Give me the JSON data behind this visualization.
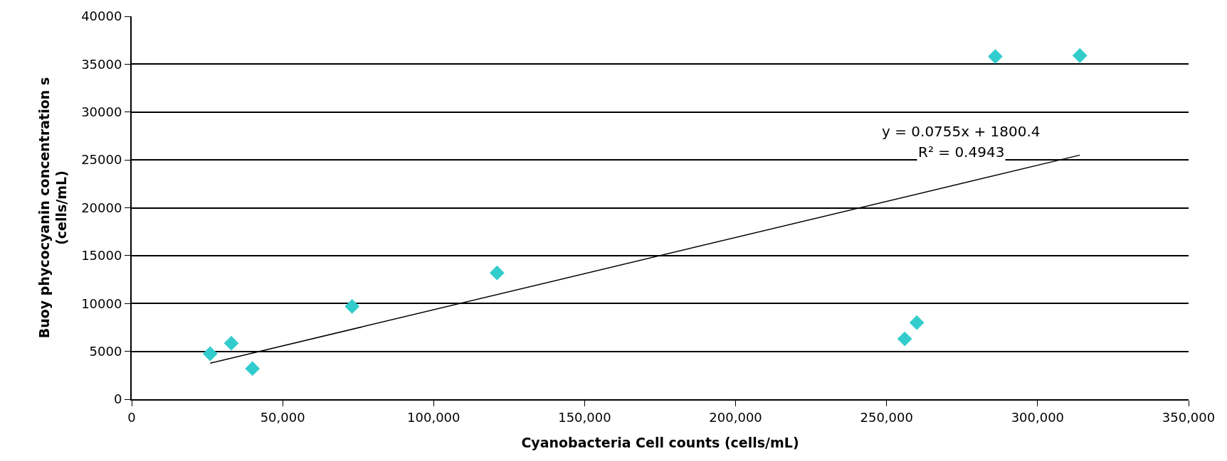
{
  "chart_data": {
    "type": "scatter",
    "xlabel": "Cyanobacteria Cell counts (cells/mL)",
    "ylabel": "Buoy phycocyanin concentration s\n(cells/mL)",
    "x": [
      26000,
      33000,
      40000,
      73000,
      121000,
      256000,
      260000,
      286000,
      314000
    ],
    "series": [
      {
        "color": "#33cccc",
        "marker": "diamond",
        "values": [
          4750,
          5850,
          3200,
          9700,
          13200,
          6300,
          8000,
          35800,
          35900
        ]
      },
      {
        "type": "line",
        "color": "#000000",
        "marker": "none",
        "x": [
          26000,
          314000
        ],
        "values": [
          3760,
          25500
        ]
      }
    ],
    "annotations": [
      "y = 0.0755x + 1800.4",
      "R² = 0.4943"
    ],
    "xlim": [
      0,
      350000
    ],
    "xticks": [
      0,
      {
        "value": 50000,
        "label": "50,000"
      },
      {
        "value": 100000,
        "label": "100,000"
      },
      {
        "value": 150000,
        "label": "150,000"
      },
      {
        "value": 200000,
        "label": "200,000"
      },
      {
        "value": 250000,
        "label": "250,000"
      },
      {
        "value": 300000,
        "label": "300,000"
      },
      {
        "value": 350000,
        "label": "350,000"
      }
    ],
    "ylim": [
      0,
      40000
    ],
    "yticks": [
      0,
      5000,
      10000,
      15000,
      20000,
      25000,
      30000,
      35000,
      40000
    ],
    "grid": "y"
  }
}
